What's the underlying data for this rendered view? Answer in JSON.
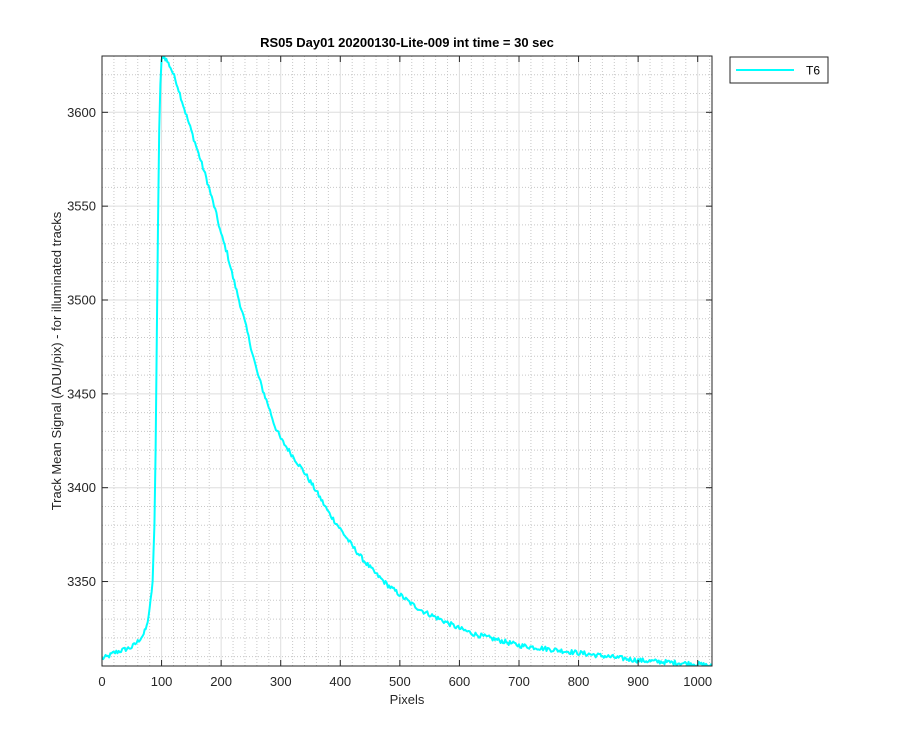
{
  "chart_data": {
    "type": "line",
    "title": "RS05 Day01 20200130-Lite-009 int time = 30 sec",
    "xlabel": "Pixels",
    "ylabel": "Track Mean Signal (ADU/pix) - for illuminated tracks",
    "xlim": [
      0,
      1024
    ],
    "ylim": [
      3305,
      3630
    ],
    "xticks": [
      0,
      100,
      200,
      300,
      400,
      500,
      600,
      700,
      800,
      900,
      1000
    ],
    "yticks": [
      3350,
      3400,
      3450,
      3500,
      3550,
      3600
    ],
    "grid": true,
    "minor_grid": true,
    "legend_position": "outside-top-right",
    "series": [
      {
        "name": "T6",
        "color": "#00ffff",
        "points": [
          [
            0,
            3309
          ],
          [
            10,
            3310
          ],
          [
            20,
            3312
          ],
          [
            30,
            3313
          ],
          [
            40,
            3314
          ],
          [
            50,
            3315
          ],
          [
            60,
            3318
          ],
          [
            70,
            3322
          ],
          [
            75,
            3326
          ],
          [
            80,
            3335
          ],
          [
            85,
            3350
          ],
          [
            88,
            3380
          ],
          [
            90,
            3420
          ],
          [
            92,
            3480
          ],
          [
            94,
            3540
          ],
          [
            96,
            3590
          ],
          [
            98,
            3615
          ],
          [
            100,
            3628
          ],
          [
            103,
            3630
          ],
          [
            108,
            3628
          ],
          [
            115,
            3624
          ],
          [
            125,
            3616
          ],
          [
            140,
            3600
          ],
          [
            150,
            3590
          ],
          [
            160,
            3580
          ],
          [
            175,
            3565
          ],
          [
            190,
            3548
          ],
          [
            200,
            3535
          ],
          [
            210,
            3525
          ],
          [
            220,
            3512
          ],
          [
            230,
            3500
          ],
          [
            240,
            3488
          ],
          [
            250,
            3475
          ],
          [
            260,
            3462
          ],
          [
            270,
            3452
          ],
          [
            280,
            3443
          ],
          [
            290,
            3433
          ],
          [
            300,
            3426
          ],
          [
            320,
            3417
          ],
          [
            340,
            3408
          ],
          [
            360,
            3398
          ],
          [
            380,
            3387
          ],
          [
            400,
            3378
          ],
          [
            420,
            3369
          ],
          [
            440,
            3361
          ],
          [
            460,
            3354
          ],
          [
            480,
            3348
          ],
          [
            500,
            3343
          ],
          [
            520,
            3338
          ],
          [
            540,
            3334
          ],
          [
            560,
            3331
          ],
          [
            580,
            3328
          ],
          [
            600,
            3325
          ],
          [
            625,
            3322
          ],
          [
            650,
            3320
          ],
          [
            675,
            3318
          ],
          [
            700,
            3316
          ],
          [
            725,
            3315
          ],
          [
            750,
            3314
          ],
          [
            775,
            3313
          ],
          [
            800,
            3312
          ],
          [
            825,
            3311
          ],
          [
            850,
            3310
          ],
          [
            875,
            3309
          ],
          [
            900,
            3308
          ],
          [
            925,
            3307.5
          ],
          [
            950,
            3307
          ],
          [
            975,
            3306.5
          ],
          [
            1000,
            3306
          ],
          [
            1024,
            3305
          ]
        ]
      }
    ]
  }
}
